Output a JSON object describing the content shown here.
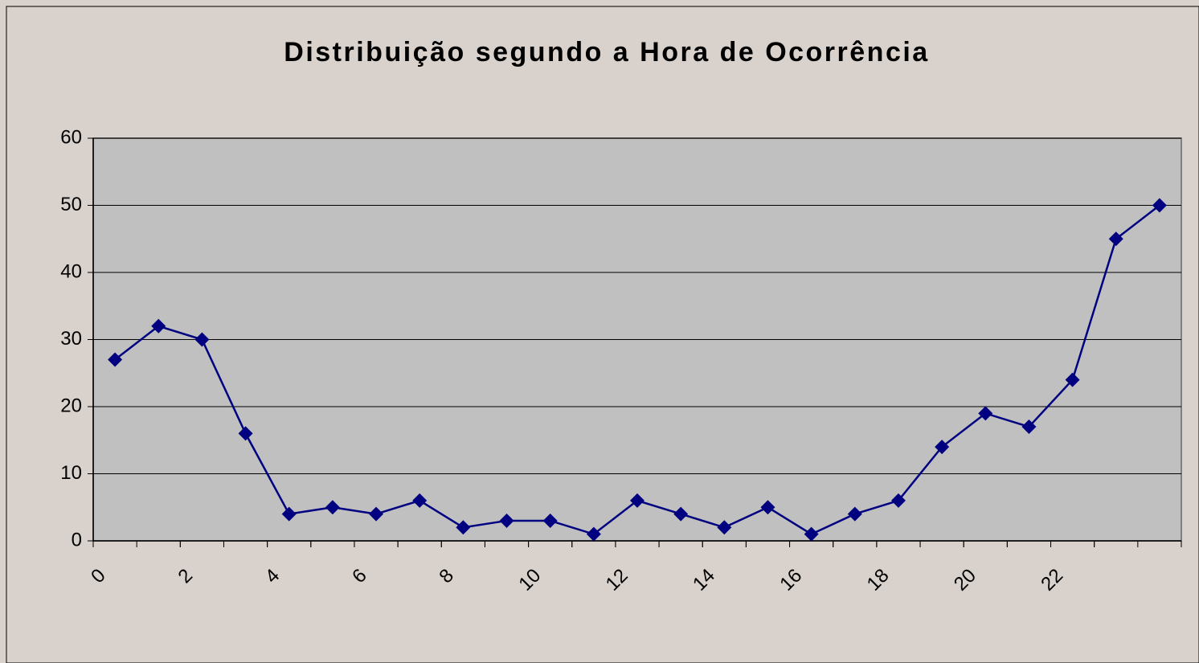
{
  "chart_data": {
    "type": "line",
    "title": "Distribuição segundo a Hora de Ocorrência",
    "x": [
      0.5,
      1.5,
      2.5,
      3.5,
      4.5,
      5.5,
      6.5,
      7.5,
      8.5,
      9.5,
      10.5,
      11.5,
      12.5,
      13.5,
      14.5,
      15.5,
      16.5,
      17.5,
      18.5,
      19.5,
      20.5,
      21.5,
      22.5,
      23.5,
      24.5
    ],
    "series": [
      {
        "color": "#000080",
        "values": [
          27,
          32,
          30,
          16,
          4,
          5,
          4,
          6,
          2,
          3,
          3,
          1,
          6,
          4,
          2,
          5,
          1,
          4,
          6,
          14,
          19,
          17,
          24,
          45,
          50
        ]
      }
    ],
    "xlim": [
      0,
      25
    ],
    "xticks": [
      0,
      2,
      4,
      6,
      8,
      10,
      12,
      14,
      16,
      18,
      20,
      22
    ],
    "ylim": [
      0,
      60
    ],
    "yticks": [
      0,
      10,
      20,
      30,
      40,
      50,
      60
    ],
    "grid": true
  }
}
